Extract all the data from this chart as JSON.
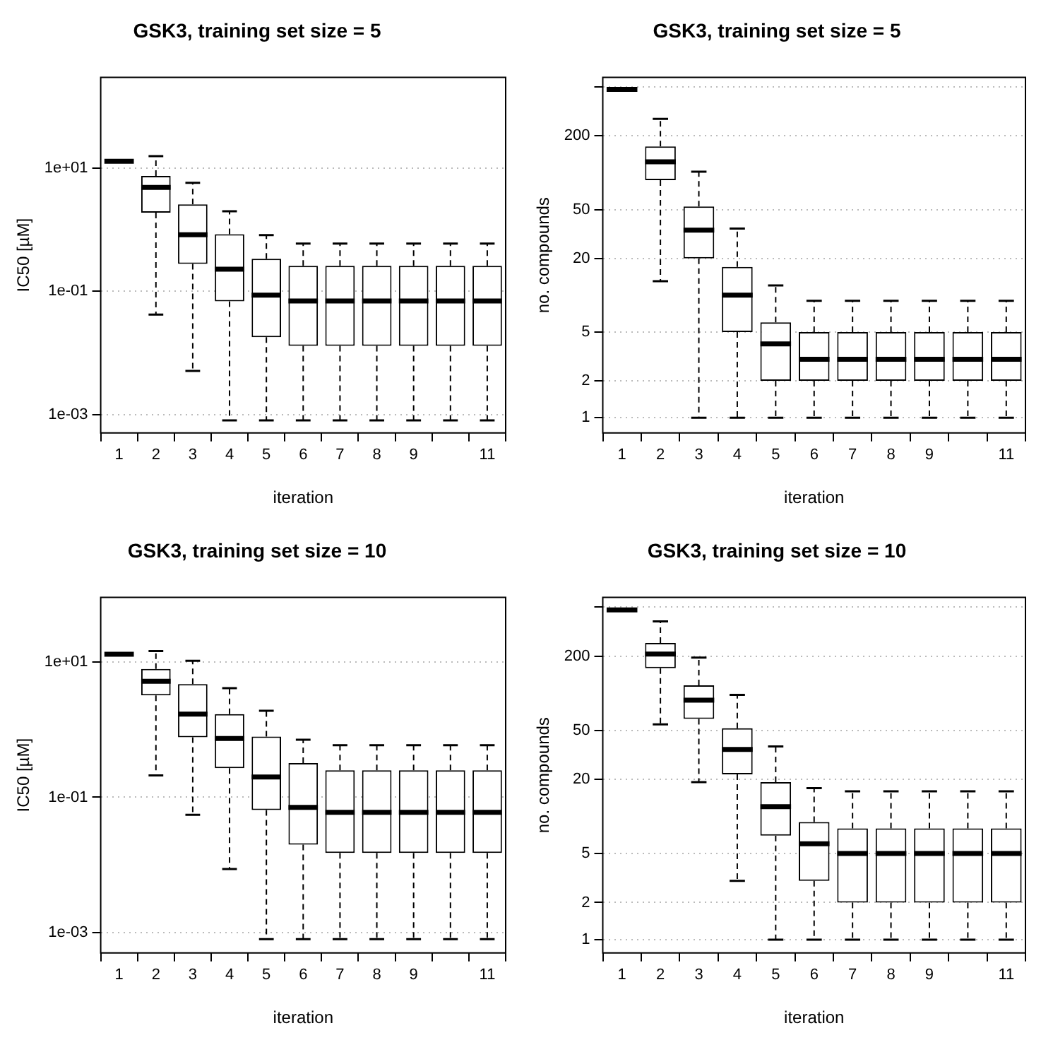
{
  "chart_data": [
    {
      "type": "box",
      "title": "GSK3, training set size = 5",
      "xlabel": "iteration",
      "ylabel": "IC50 [µM]",
      "log": "y",
      "grid": "y",
      "categories": [
        "1",
        "2",
        "3",
        "4",
        "5",
        "6",
        "7",
        "8",
        "9",
        null,
        "11"
      ],
      "ylim": [
        0.0005,
        300
      ],
      "yticks": [
        {
          "value": 0.001,
          "label": "1e-03"
        },
        {
          "value": 0.1,
          "label": "1e-01"
        },
        {
          "value": 10,
          "label": "1e+01"
        }
      ],
      "boxes": [
        {
          "low": 13,
          "q1": 13,
          "median": 13,
          "q3": 13,
          "high": 13
        },
        {
          "low": 0.042,
          "q1": 1.9,
          "median": 4.9,
          "q3": 7.5,
          "high": 15.8
        },
        {
          "low": 0.0051,
          "q1": 0.28,
          "median": 0.83,
          "q3": 2.6,
          "high": 5.8
        },
        {
          "low": 0.0008,
          "q1": 0.069,
          "median": 0.23,
          "q3": 0.85,
          "high": 2.0
        },
        {
          "low": 0.0008,
          "q1": 0.018,
          "median": 0.087,
          "q3": 0.34,
          "high": 0.82
        },
        {
          "low": 0.0008,
          "q1": 0.013,
          "median": 0.07,
          "q3": 0.26,
          "high": 0.6
        },
        {
          "low": 0.0008,
          "q1": 0.013,
          "median": 0.07,
          "q3": 0.26,
          "high": 0.6
        },
        {
          "low": 0.0008,
          "q1": 0.013,
          "median": 0.07,
          "q3": 0.26,
          "high": 0.6
        },
        {
          "low": 0.0008,
          "q1": 0.013,
          "median": 0.07,
          "q3": 0.26,
          "high": 0.6
        },
        {
          "low": 0.0008,
          "q1": 0.013,
          "median": 0.07,
          "q3": 0.26,
          "high": 0.6
        },
        {
          "low": 0.0008,
          "q1": 0.013,
          "median": 0.07,
          "q3": 0.26,
          "high": 0.6
        }
      ]
    },
    {
      "type": "box",
      "title": "GSK3, training set size = 5",
      "xlabel": "iteration",
      "ylabel": "no. compounds",
      "log": "y",
      "grid": "y",
      "categories": [
        "1",
        "2",
        "3",
        "4",
        "5",
        "6",
        "7",
        "8",
        "9",
        null,
        "11"
      ],
      "ylim": [
        0.75,
        600
      ],
      "yticks": [
        1,
        2,
        5,
        20,
        50,
        200,
        {
          "value": 500,
          "label": null
        }
      ],
      "boxes": [
        {
          "low": 480,
          "q1": 480,
          "median": 480,
          "q3": 480,
          "high": 480
        },
        {
          "low": 13,
          "q1": 87,
          "median": 123,
          "q3": 164,
          "high": 275
        },
        {
          "low": 1,
          "q1": 20,
          "median": 34,
          "q3": 53,
          "high": 102
        },
        {
          "low": 1,
          "q1": 5,
          "median": 10,
          "q3": 17,
          "high": 35
        },
        {
          "low": 1,
          "q1": 2,
          "median": 4,
          "q3": 6,
          "high": 12
        },
        {
          "low": 1,
          "q1": 2,
          "median": 3,
          "q3": 5,
          "high": 9
        },
        {
          "low": 1,
          "q1": 2,
          "median": 3,
          "q3": 5,
          "high": 9
        },
        {
          "low": 1,
          "q1": 2,
          "median": 3,
          "q3": 5,
          "high": 9
        },
        {
          "low": 1,
          "q1": 2,
          "median": 3,
          "q3": 5,
          "high": 9
        },
        {
          "low": 1,
          "q1": 2,
          "median": 3,
          "q3": 5,
          "high": 9
        },
        {
          "low": 1,
          "q1": 2,
          "median": 3,
          "q3": 5,
          "high": 9
        }
      ]
    },
    {
      "type": "box",
      "title": "GSK3, training set size = 10",
      "xlabel": "iteration",
      "ylabel": "IC50 [µM]",
      "log": "y",
      "grid": "y",
      "categories": [
        "1",
        "2",
        "3",
        "4",
        "5",
        "6",
        "7",
        "8",
        "9",
        null,
        "11"
      ],
      "ylim": [
        0.0005,
        90
      ],
      "yticks": [
        {
          "value": 0.001,
          "label": "1e-03"
        },
        {
          "value": 0.1,
          "label": "1e-01"
        },
        {
          "value": 10,
          "label": "1e+01"
        }
      ],
      "boxes": [
        {
          "low": 13,
          "q1": 13,
          "median": 13,
          "q3": 13,
          "high": 13
        },
        {
          "low": 0.21,
          "q1": 3.2,
          "median": 5.2,
          "q3": 7.9,
          "high": 14.5
        },
        {
          "low": 0.055,
          "q1": 0.77,
          "median": 1.7,
          "q3": 4.7,
          "high": 10.4
        },
        {
          "low": 0.0087,
          "q1": 0.27,
          "median": 0.74,
          "q3": 1.7,
          "high": 4.1
        },
        {
          "low": 0.0008,
          "q1": 0.065,
          "median": 0.2,
          "q3": 0.79,
          "high": 1.9
        },
        {
          "low": 0.0008,
          "q1": 0.02,
          "median": 0.071,
          "q3": 0.32,
          "high": 0.71
        },
        {
          "low": 0.0008,
          "q1": 0.015,
          "median": 0.06,
          "q3": 0.25,
          "high": 0.59
        },
        {
          "low": 0.0008,
          "q1": 0.015,
          "median": 0.06,
          "q3": 0.25,
          "high": 0.59
        },
        {
          "low": 0.0008,
          "q1": 0.015,
          "median": 0.06,
          "q3": 0.25,
          "high": 0.59
        },
        {
          "low": 0.0008,
          "q1": 0.015,
          "median": 0.06,
          "q3": 0.25,
          "high": 0.59
        },
        {
          "low": 0.0008,
          "q1": 0.015,
          "median": 0.06,
          "q3": 0.25,
          "high": 0.59
        }
      ]
    },
    {
      "type": "box",
      "title": "GSK3, training set size = 10",
      "xlabel": "iteration",
      "ylabel": "no. compounds",
      "log": "y",
      "grid": "y",
      "categories": [
        "1",
        "2",
        "3",
        "4",
        "5",
        "6",
        "7",
        "8",
        "9",
        null,
        "11"
      ],
      "ylim": [
        0.78,
        600
      ],
      "yticks": [
        1,
        2,
        5,
        20,
        50,
        200,
        {
          "value": 500,
          "label": null
        }
      ],
      "boxes": [
        {
          "low": 475,
          "q1": 475,
          "median": 475,
          "q3": 475,
          "high": 475
        },
        {
          "low": 56,
          "q1": 160,
          "median": 208,
          "q3": 256,
          "high": 383
        },
        {
          "low": 19,
          "q1": 62,
          "median": 88,
          "q3": 116,
          "high": 195
        },
        {
          "low": 3,
          "q1": 22,
          "median": 35,
          "q3": 52,
          "high": 97
        },
        {
          "low": 1,
          "q1": 7,
          "median": 12,
          "q3": 19,
          "high": 37
        },
        {
          "low": 1,
          "q1": 3,
          "median": 6,
          "q3": 9,
          "high": 17
        },
        {
          "low": 1,
          "q1": 2,
          "median": 5,
          "q3": 8,
          "high": 16
        },
        {
          "low": 1,
          "q1": 2,
          "median": 5,
          "q3": 8,
          "high": 16
        },
        {
          "low": 1,
          "q1": 2,
          "median": 5,
          "q3": 8,
          "high": 16
        },
        {
          "low": 1,
          "q1": 2,
          "median": 5,
          "q3": 8,
          "high": 16
        },
        {
          "low": 1,
          "q1": 2,
          "median": 5,
          "q3": 8,
          "high": 16
        }
      ]
    }
  ]
}
